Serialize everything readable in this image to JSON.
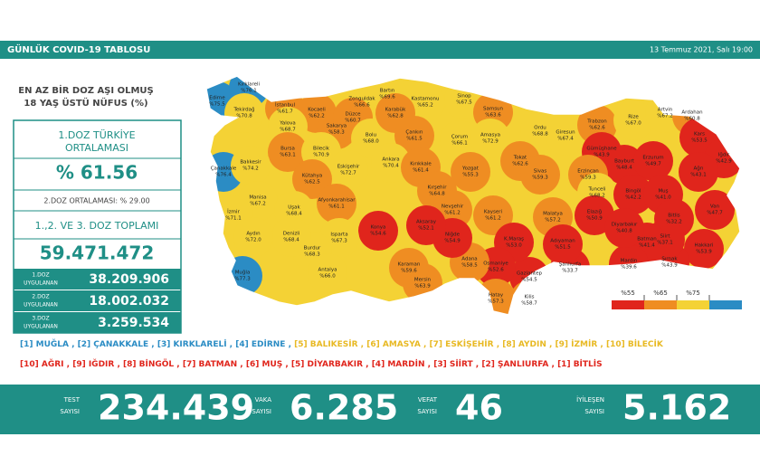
{
  "header": {
    "title": "GÜNLÜK COVID-19 TABLOSU",
    "date": "13 Temmuz 2021, Salı 19:00"
  },
  "panel": {
    "title": [
      "EN AZ BİR DOZ AŞI OLMUŞ",
      "18 YAŞ ÜSTÜ NÜFUS (%)"
    ],
    "avg_label": [
      "1.DOZ TÜRKİYE",
      "ORTALAMASI"
    ],
    "avg_value": "% 61.56",
    "dose2": "2.DOZ ORTALAMASI: % 29.00",
    "total_label": "1.,2. VE 3. DOZ TOPLAMI",
    "total_value": "59.471.472",
    "doses": [
      {
        "label": [
          "1.DOZ",
          "UYGULANAN"
        ],
        "value": "38.209.906"
      },
      {
        "label": [
          "2.DOZ",
          "UYGULANAN"
        ],
        "value": "18.002.032"
      },
      {
        "label": [
          "3.DOZ",
          "UYGULANAN"
        ],
        "value": "3.259.534"
      }
    ]
  },
  "map": {
    "legend": {
      "thresholds": [
        {
          "value": 55,
          "label": "%55"
        },
        {
          "value": 65,
          "label": "%65"
        },
        {
          "value": 75,
          "label": "%75"
        }
      ],
      "colors": [
        "#e0251c",
        "#ef8d22",
        "#f4d235",
        "#2b8cc4"
      ]
    },
    "provinces": [
      {
        "name": "Edirne",
        "value": 75.5,
        "label": "%75.5"
      },
      {
        "name": "Kırklareli",
        "value": 76.1,
        "label": "%76.1"
      },
      {
        "name": "Tekirdağ",
        "value": 70.8,
        "label": "%70.8"
      },
      {
        "name": "İstanbul",
        "value": 61.7,
        "label": "%61.7"
      },
      {
        "name": "Kocaeli",
        "value": 62.2,
        "label": "%62.2"
      },
      {
        "name": "Zonguldak",
        "value": 66.6,
        "label": "%66.6"
      },
      {
        "name": "Bartın",
        "value": 69.6,
        "label": "%69.6"
      },
      {
        "name": "Kastamonu",
        "value": 65.2,
        "label": "%65.2"
      },
      {
        "name": "Sinop",
        "value": 67.5,
        "label": "%67.5"
      },
      {
        "name": "Samsun",
        "value": 63.6,
        "label": "%63.6"
      },
      {
        "name": "Ordu",
        "value": 68.8,
        "label": "%68.8"
      },
      {
        "name": "Giresun",
        "value": 67.4,
        "label": "%67.4"
      },
      {
        "name": "Trabzon",
        "value": 62.6,
        "label": "%62.6"
      },
      {
        "name": "Rize",
        "value": 67.0,
        "label": "%67.0"
      },
      {
        "name": "Artvin",
        "value": 67.2,
        "label": "%67.2"
      },
      {
        "name": "Ardahan",
        "value": 60.8,
        "label": "%60.8"
      },
      {
        "name": "Kars",
        "value": 53.5,
        "label": "%53.5"
      },
      {
        "name": "Iğdır",
        "value": 42.9,
        "label": "%42.9"
      },
      {
        "name": "Ağrı",
        "value": 43.1,
        "label": "%43.1"
      },
      {
        "name": "Çanakkale",
        "value": 76.4,
        "label": "%76.4"
      },
      {
        "name": "Yalova",
        "value": 68.7,
        "label": "%68.7"
      },
      {
        "name": "Sakarya",
        "value": 58.3,
        "label": "%58.3"
      },
      {
        "name": "Düzce",
        "value": 60.7,
        "label": "%60.7"
      },
      {
        "name": "Bolu",
        "value": 68.0,
        "label": "%68.0"
      },
      {
        "name": "Karabük",
        "value": 62.8,
        "label": "%62.8"
      },
      {
        "name": "Çankırı",
        "value": 61.5,
        "label": "%61.5"
      },
      {
        "name": "Çorum",
        "value": 66.1,
        "label": "%66.1"
      },
      {
        "name": "Amasya",
        "value": 72.9,
        "label": "%72.9"
      },
      {
        "name": "Tokat",
        "value": 62.6,
        "label": "%62.6"
      },
      {
        "name": "Gümüşhane",
        "value": 43.9,
        "label": "%43.9"
      },
      {
        "name": "Bayburt",
        "value": 48.4,
        "label": "%48.4"
      },
      {
        "name": "Erzurum",
        "value": 49.7,
        "label": "%49.7"
      },
      {
        "name": "Erzincan",
        "value": 59.3,
        "label": "%59.3"
      },
      {
        "name": "Bursa",
        "value": 63.1,
        "label": "%63.1"
      },
      {
        "name": "Bilecik",
        "value": 70.9,
        "label": "%70.9"
      },
      {
        "name": "Eskişehir",
        "value": 72.7,
        "label": "%72.7"
      },
      {
        "name": "Ankara",
        "value": 70.4,
        "label": "%70.4"
      },
      {
        "name": "Kırıkkale",
        "value": 61.4,
        "label": "%61.4"
      },
      {
        "name": "Yozgat",
        "value": 55.3,
        "label": "%55.3"
      },
      {
        "name": "Sivas",
        "value": 59.3,
        "label": "%59.3"
      },
      {
        "name": "Balıkesir",
        "value": 74.2,
        "label": "%74.2"
      },
      {
        "name": "Kütahya",
        "value": 62.5,
        "label": "%62.5"
      },
      {
        "name": "Manisa",
        "value": 67.2,
        "label": "%67.2"
      },
      {
        "name": "İzmir",
        "value": 71.1,
        "label": "%71.1"
      },
      {
        "name": "Uşak",
        "value": 68.4,
        "label": "%68.4"
      },
      {
        "name": "Afyonkarahisar",
        "value": 61.1,
        "label": "%61.1"
      },
      {
        "name": "Kırşehir",
        "value": 64.8,
        "label": "%64.8"
      },
      {
        "name": "Nevşehir",
        "value": 61.2,
        "label": "%61.2"
      },
      {
        "name": "Kayseri",
        "value": 61.2,
        "label": "%61.2"
      },
      {
        "name": "Malatya",
        "value": 57.2,
        "label": "%57.2"
      },
      {
        "name": "Tunceli",
        "value": 68.2,
        "label": "%68.2"
      },
      {
        "name": "Elazığ",
        "value": 50.9,
        "label": "%50.9"
      },
      {
        "name": "Bingöl",
        "value": 42.2,
        "label": "%42.2"
      },
      {
        "name": "Muş",
        "value": 41.0,
        "label": "%41.0"
      },
      {
        "name": "Bitlis",
        "value": 32.2,
        "label": "%32.2"
      },
      {
        "name": "Van",
        "value": 47.7,
        "label": "%47.7"
      },
      {
        "name": "Hakkari",
        "value": 53.9,
        "label": "%53.9"
      },
      {
        "name": "Şırnak",
        "value": 43.9,
        "label": "%43.9"
      },
      {
        "name": "Siirt",
        "value": 37.1,
        "label": "%37.1"
      },
      {
        "name": "Batman",
        "value": 41.4,
        "label": "%41.4"
      },
      {
        "name": "Mardin",
        "value": 39.6,
        "label": "%39.6"
      },
      {
        "name": "Diyarbakır",
        "value": 40.8,
        "label": "%40.8"
      },
      {
        "name": "Şanlıurfa",
        "value": 33.7,
        "label": "%33.7"
      },
      {
        "name": "Adıyaman",
        "value": 51.5,
        "label": "%51.5"
      },
      {
        "name": "Gaziantep",
        "value": 54.5,
        "label": "%54.5"
      },
      {
        "name": "K.Maraş",
        "value": 53.0,
        "label": "%53.0"
      },
      {
        "name": "Osmaniye",
        "value": 52.6,
        "label": "%52.6"
      },
      {
        "name": "Kilis",
        "value": 58.7,
        "label": "%58.7"
      },
      {
        "name": "Hatay",
        "value": 57.3,
        "label": "%57.3"
      },
      {
        "name": "Adana",
        "value": 58.5,
        "label": "%58.5"
      },
      {
        "name": "Mersin",
        "value": 63.9,
        "label": "%63.9"
      },
      {
        "name": "Karaman",
        "value": 59.6,
        "label": "%59.6"
      },
      {
        "name": "Niğde",
        "value": 54.9,
        "label": "%54.9"
      },
      {
        "name": "Aksaray",
        "value": 52.1,
        "label": "%52.1"
      },
      {
        "name": "Konya",
        "value": 54.6,
        "label": "%54.6"
      },
      {
        "name": "Isparta",
        "value": 67.3,
        "label": "%67.3"
      },
      {
        "name": "Burdur",
        "value": 68.3,
        "label": "%68.3"
      },
      {
        "name": "Denizli",
        "value": 68.4,
        "label": "%68.4"
      },
      {
        "name": "Aydın",
        "value": 72.0,
        "label": "%72.0"
      },
      {
        "name": "Muğla",
        "value": 77.3,
        "label": "%77.3"
      },
      {
        "name": "Antalya",
        "value": 66.0,
        "label": "%66.0"
      }
    ]
  },
  "rankings": {
    "top": [
      {
        "text": "[1] MUĞLA ,",
        "color": "#2b8cc4"
      },
      {
        "text": " [2] ÇANAKKALE ,",
        "color": "#2b8cc4"
      },
      {
        "text": " [3] KIRKLARELİ ,",
        "color": "#2b8cc4"
      },
      {
        "text": " [4] EDİRNE ,",
        "color": "#2b8cc4"
      },
      {
        "text": " [5] BALIKESİR ,",
        "color": "#e8b923"
      },
      {
        "text": " [6] AMASYA ,",
        "color": "#e8b923"
      },
      {
        "text": " [7] ESKİŞEHİR ,",
        "color": "#e8b923"
      },
      {
        "text": " [8] AYDIN ,",
        "color": "#e8b923"
      },
      {
        "text": " [9] İZMİR ,",
        "color": "#e8b923"
      },
      {
        "text": " [10] BİLECİK",
        "color": "#e8b923"
      }
    ],
    "bottom": [
      {
        "text": "[10] AĞRI ,",
        "color": "#e0251c"
      },
      {
        "text": " [9] IĞDIR ,",
        "color": "#e0251c"
      },
      {
        "text": " [8] BİNGÖL ,",
        "color": "#e0251c"
      },
      {
        "text": " [7] BATMAN ,",
        "color": "#e0251c"
      },
      {
        "text": " [6] MUŞ ,",
        "color": "#e0251c"
      },
      {
        "text": " [5] DİYARBAKIR ,",
        "color": "#e0251c"
      },
      {
        "text": " [4] MARDİN ,",
        "color": "#e0251c"
      },
      {
        "text": " [3] SİİRT ,",
        "color": "#e0251c"
      },
      {
        "text": " [2] ŞANLIURFA ,",
        "color": "#e0251c"
      },
      {
        "text": " [1] BİTLİS",
        "color": "#e0251c"
      }
    ]
  },
  "stats": [
    {
      "label": [
        "TEST",
        "SAYISI"
      ],
      "value": "234.439"
    },
    {
      "label": [
        "VAKA",
        "SAYISI"
      ],
      "value": "6.285"
    },
    {
      "label": [
        "VEFAT",
        "SAYISI"
      ],
      "value": "46"
    },
    {
      "label": [
        "İYİLEŞEN",
        "SAYISI"
      ],
      "value": "5.162"
    }
  ]
}
